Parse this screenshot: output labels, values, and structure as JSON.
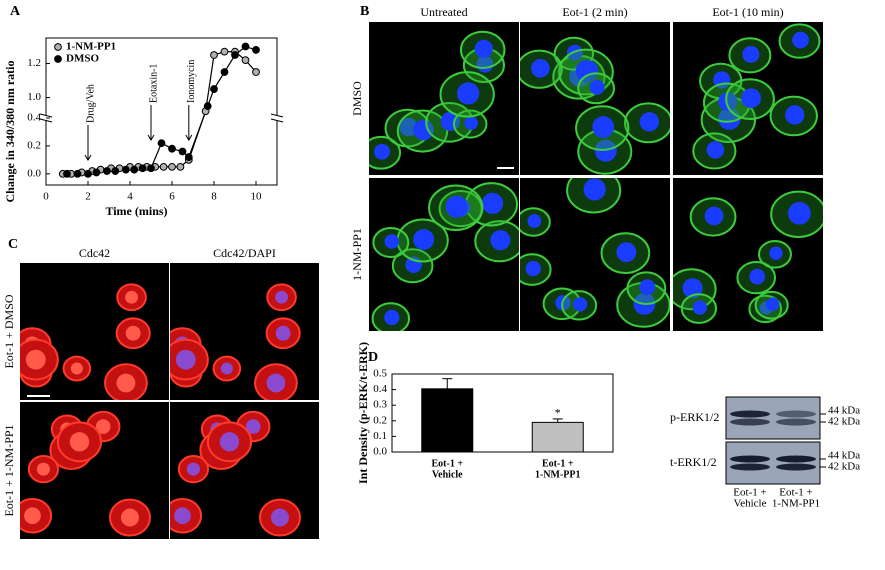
{
  "panel_labels": [
    "A",
    "B",
    "C",
    "D"
  ],
  "chart_data": [
    {
      "type": "line",
      "y_label": "Change in 340/380 nm ratio",
      "x_label": "Time (mins)",
      "xlim": [
        0,
        11
      ],
      "xticks": [
        0,
        2,
        4,
        6,
        8,
        10
      ],
      "ylim": [
        -0.08,
        1.35
      ],
      "y_break": [
        0.4,
        0.88
      ],
      "yticks": [
        {
          "value": 0,
          "label": "0.0"
        },
        0.2,
        0.4,
        {
          "value": 1,
          "label": "1.0"
        },
        1.2
      ],
      "legend": "top-left",
      "series": [
        {
          "name": "1-NM-PP1",
          "color": "#b0b0b0",
          "x": [
            0.8,
            1.2,
            1.7,
            2.2,
            2.6,
            3.1,
            3.5,
            4.0,
            4.4,
            4.8,
            5.2,
            5.6,
            6.0,
            6.4,
            6.8,
            7.6,
            8.0,
            8.5,
            9.0,
            9.5,
            10.0
          ],
          "values": [
            0.0,
            0.0,
            0.01,
            0.02,
            0.03,
            0.04,
            0.04,
            0.05,
            0.05,
            0.05,
            0.05,
            0.05,
            0.05,
            0.05,
            0.1,
            0.92,
            1.25,
            1.27,
            1.27,
            1.22,
            1.15
          ]
        },
        {
          "name": "DMSO",
          "color": "#000000",
          "x": [
            1.0,
            1.5,
            2.0,
            2.4,
            2.9,
            3.3,
            3.8,
            4.2,
            4.6,
            5.0,
            5.5,
            6.0,
            6.5,
            6.8,
            7.7,
            8.0,
            8.5,
            9.0,
            9.5,
            10.0
          ],
          "values": [
            0.0,
            0.0,
            0.0,
            0.01,
            0.02,
            0.02,
            0.03,
            0.03,
            0.04,
            0.04,
            0.22,
            0.18,
            0.16,
            0.12,
            0.95,
            1.05,
            1.15,
            1.25,
            1.3,
            1.28
          ]
        }
      ],
      "annotations": [
        {
          "text": "Drug/Veh",
          "x": 2
        },
        {
          "text": "Eotaxin-1",
          "x": 5
        },
        {
          "text": "Ionomycin",
          "x": 6.8
        }
      ]
    },
    {
      "type": "bar",
      "y_label": "Int Density (p-ERK/t-ERK)",
      "categories": [
        [
          "Eot-1 +",
          "Vehicle"
        ],
        [
          "Eot-1 +",
          "1-NM-PP1"
        ]
      ],
      "values": [
        0.405,
        0.19
      ],
      "errors": [
        0.065,
        0.022
      ],
      "colors": [
        "#000000",
        "#c0c0c0"
      ],
      "ylim": [
        0,
        0.5
      ],
      "yticks": [
        {
          "value": 0,
          "label": "0.0"
        },
        0.1,
        0.2,
        0.3,
        0.4,
        0.5
      ],
      "annotations": [
        {
          "text": "*",
          "category": 1
        }
      ]
    }
  ],
  "panel_b": {
    "columns": [
      "Untreated",
      "Eot-1 (2 min)",
      "Eot-1 (10 min)"
    ],
    "rows": [
      "DMSO",
      "1-NM-PP1"
    ]
  },
  "panel_c": {
    "columns": [
      "Cdc42",
      "Cdc42/DAPI"
    ],
    "rows": [
      "Eot-1 + DMSO",
      "Eot-1 + 1-NM-PP1"
    ]
  },
  "blot": {
    "rows": [
      "p-ERK1/2",
      "t-ERK1/2"
    ],
    "markers": [
      "44 kDa",
      "42 kDa"
    ],
    "lanes": [
      [
        "Eot-1 +",
        "Vehicle"
      ],
      [
        "Eot-1 +",
        "1-NM-PP1"
      ]
    ]
  }
}
